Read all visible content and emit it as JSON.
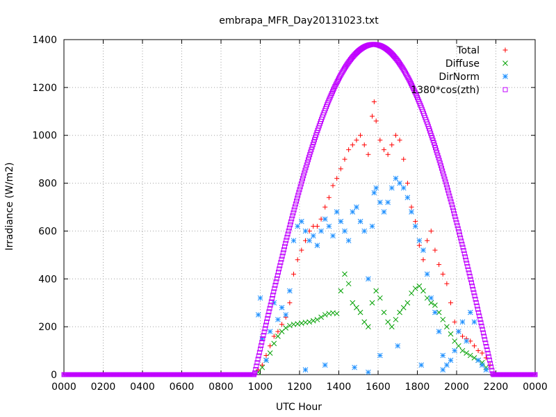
{
  "chart_data": {
    "type": "scatter",
    "title": "embrapa_MFR_Day20131023.txt",
    "xlabel": "UTC Hour",
    "ylabel": "Irradiance (W/m2)",
    "xlim": [
      0,
      24
    ],
    "ylim": [
      0,
      1400
    ],
    "grid": true,
    "legend_position": "top-right",
    "x_tick_labels": [
      "0000",
      "0200",
      "0400",
      "0600",
      "0800",
      "1000",
      "1200",
      "1400",
      "1600",
      "1800",
      "2000",
      "2200",
      "0000"
    ],
    "x_tick_values": [
      0,
      2,
      4,
      6,
      8,
      10,
      12,
      14,
      16,
      18,
      20,
      22,
      24
    ],
    "y_tick_values": [
      0,
      200,
      400,
      600,
      800,
      1000,
      1200,
      1400
    ],
    "series": [
      {
        "name": "Total",
        "color": "#ff0000",
        "marker": "plus",
        "points": [
          [
            9.9,
            20
          ],
          [
            10.1,
            40
          ],
          [
            10.3,
            80
          ],
          [
            10.5,
            120
          ],
          [
            10.7,
            160
          ],
          [
            10.9,
            180
          ],
          [
            11.1,
            210
          ],
          [
            11.3,
            240
          ],
          [
            11.5,
            300
          ],
          [
            11.7,
            420
          ],
          [
            11.9,
            480
          ],
          [
            12.1,
            520
          ],
          [
            12.3,
            560
          ],
          [
            12.5,
            600
          ],
          [
            12.7,
            620
          ],
          [
            12.9,
            620
          ],
          [
            13.1,
            650
          ],
          [
            13.3,
            700
          ],
          [
            13.5,
            740
          ],
          [
            13.7,
            790
          ],
          [
            13.9,
            820
          ],
          [
            14.1,
            860
          ],
          [
            14.3,
            900
          ],
          [
            14.5,
            940
          ],
          [
            14.7,
            960
          ],
          [
            14.9,
            980
          ],
          [
            15.1,
            1000
          ],
          [
            15.3,
            960
          ],
          [
            15.5,
            920
          ],
          [
            15.7,
            1080
          ],
          [
            15.8,
            1140
          ],
          [
            15.9,
            1060
          ],
          [
            16.1,
            980
          ],
          [
            16.3,
            940
          ],
          [
            16.5,
            920
          ],
          [
            16.7,
            960
          ],
          [
            16.9,
            1000
          ],
          [
            17.1,
            980
          ],
          [
            17.3,
            900
          ],
          [
            17.5,
            800
          ],
          [
            17.7,
            700
          ],
          [
            17.9,
            640
          ],
          [
            18.1,
            540
          ],
          [
            18.3,
            480
          ],
          [
            18.5,
            560
          ],
          [
            18.7,
            600
          ],
          [
            18.9,
            520
          ],
          [
            19.1,
            460
          ],
          [
            19.3,
            420
          ],
          [
            19.5,
            380
          ],
          [
            19.7,
            300
          ],
          [
            19.9,
            220
          ],
          [
            20.1,
            180
          ],
          [
            20.3,
            160
          ],
          [
            20.5,
            150
          ],
          [
            20.7,
            140
          ],
          [
            20.9,
            120
          ],
          [
            21.1,
            100
          ],
          [
            21.3,
            90
          ],
          [
            21.5,
            70
          ],
          [
            21.7,
            40
          ]
        ]
      },
      {
        "name": "Diffuse",
        "color": "#00a000",
        "marker": "cross",
        "points": [
          [
            9.9,
            10
          ],
          [
            10.1,
            30
          ],
          [
            10.3,
            60
          ],
          [
            10.5,
            90
          ],
          [
            10.7,
            130
          ],
          [
            10.9,
            160
          ],
          [
            11.1,
            180
          ],
          [
            11.3,
            195
          ],
          [
            11.5,
            205
          ],
          [
            11.7,
            210
          ],
          [
            11.9,
            212
          ],
          [
            12.1,
            215
          ],
          [
            12.3,
            218
          ],
          [
            12.5,
            220
          ],
          [
            12.7,
            225
          ],
          [
            12.9,
            230
          ],
          [
            13.1,
            240
          ],
          [
            13.3,
            250
          ],
          [
            13.5,
            255
          ],
          [
            13.7,
            258
          ],
          [
            13.9,
            255
          ],
          [
            14.1,
            350
          ],
          [
            14.3,
            420
          ],
          [
            14.5,
            380
          ],
          [
            14.7,
            300
          ],
          [
            14.9,
            280
          ],
          [
            15.1,
            260
          ],
          [
            15.3,
            220
          ],
          [
            15.5,
            200
          ],
          [
            15.7,
            300
          ],
          [
            15.9,
            350
          ],
          [
            16.1,
            320
          ],
          [
            16.3,
            260
          ],
          [
            16.5,
            220
          ],
          [
            16.7,
            200
          ],
          [
            16.9,
            230
          ],
          [
            17.1,
            260
          ],
          [
            17.3,
            280
          ],
          [
            17.5,
            300
          ],
          [
            17.7,
            340
          ],
          [
            17.9,
            360
          ],
          [
            18.1,
            370
          ],
          [
            18.3,
            350
          ],
          [
            18.5,
            320
          ],
          [
            18.7,
            300
          ],
          [
            18.9,
            290
          ],
          [
            19.1,
            260
          ],
          [
            19.3,
            230
          ],
          [
            19.5,
            200
          ],
          [
            19.7,
            170
          ],
          [
            19.9,
            140
          ],
          [
            20.1,
            120
          ],
          [
            20.3,
            100
          ],
          [
            20.5,
            90
          ],
          [
            20.7,
            80
          ],
          [
            20.9,
            70
          ],
          [
            21.1,
            60
          ],
          [
            21.3,
            50
          ],
          [
            21.5,
            30
          ]
        ]
      },
      {
        "name": "DirNorm",
        "color": "#1e90ff",
        "marker": "star",
        "points": [
          [
            9.9,
            250
          ],
          [
            10.0,
            320
          ],
          [
            10.1,
            150
          ],
          [
            10.3,
            60
          ],
          [
            10.5,
            180
          ],
          [
            10.7,
            300
          ],
          [
            10.9,
            230
          ],
          [
            11.1,
            280
          ],
          [
            11.3,
            250
          ],
          [
            11.5,
            350
          ],
          [
            11.7,
            560
          ],
          [
            11.9,
            620
          ],
          [
            12.1,
            640
          ],
          [
            12.3,
            600
          ],
          [
            12.5,
            560
          ],
          [
            12.7,
            580
          ],
          [
            12.9,
            540
          ],
          [
            13.1,
            600
          ],
          [
            13.3,
            650
          ],
          [
            13.5,
            620
          ],
          [
            13.7,
            580
          ],
          [
            13.9,
            680
          ],
          [
            14.1,
            640
          ],
          [
            14.3,
            600
          ],
          [
            14.5,
            560
          ],
          [
            14.7,
            680
          ],
          [
            14.9,
            700
          ],
          [
            15.1,
            640
          ],
          [
            15.3,
            600
          ],
          [
            15.5,
            400
          ],
          [
            15.7,
            620
          ],
          [
            15.8,
            760
          ],
          [
            15.9,
            780
          ],
          [
            16.1,
            720
          ],
          [
            16.3,
            680
          ],
          [
            16.5,
            720
          ],
          [
            16.7,
            780
          ],
          [
            16.9,
            820
          ],
          [
            17.1,
            800
          ],
          [
            17.3,
            780
          ],
          [
            17.5,
            740
          ],
          [
            17.7,
            680
          ],
          [
            17.9,
            620
          ],
          [
            18.1,
            560
          ],
          [
            18.3,
            520
          ],
          [
            18.5,
            420
          ],
          [
            18.7,
            320
          ],
          [
            18.9,
            260
          ],
          [
            19.1,
            180
          ],
          [
            19.3,
            80
          ],
          [
            19.5,
            40
          ],
          [
            19.7,
            60
          ],
          [
            19.9,
            100
          ],
          [
            20.1,
            180
          ],
          [
            20.3,
            220
          ],
          [
            20.5,
            140
          ],
          [
            20.7,
            260
          ],
          [
            20.9,
            220
          ],
          [
            21.1,
            60
          ],
          [
            21.3,
            40
          ],
          [
            21.5,
            20
          ],
          [
            12.3,
            20
          ],
          [
            13.3,
            40
          ],
          [
            14.8,
            30
          ],
          [
            15.5,
            10
          ],
          [
            16.1,
            80
          ],
          [
            17.0,
            120
          ],
          [
            18.2,
            40
          ],
          [
            19.3,
            20
          ]
        ]
      },
      {
        "name": "1380*cos(zth)",
        "color": "#c000ff",
        "marker": "square",
        "amplitude": 1380,
        "sunrise": 9.7,
        "sunset": 21.85,
        "solar_noon": 15.8
      }
    ]
  }
}
